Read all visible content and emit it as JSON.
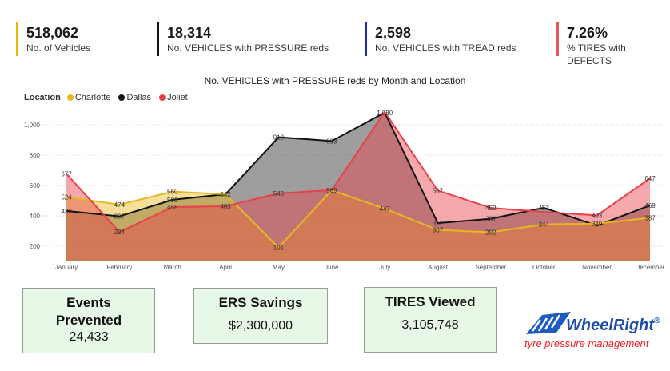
{
  "kpis": [
    {
      "value": "518,062",
      "label": "No. of Vehicles",
      "color": "#e6b800"
    },
    {
      "value": "18,314",
      "label": "No. VEHICLES with PRESSURE reds",
      "color": "#111111"
    },
    {
      "value": "2,598",
      "label": "No. VEHICLES with TREAD reds",
      "color": "#1a2a9c"
    },
    {
      "value": "7.26%",
      "label": "% TIRES with DEFECTS",
      "color": "#e85a5a"
    }
  ],
  "legend": {
    "title": "Location"
  },
  "chart_data": {
    "type": "area",
    "title": "No. VEHICLES with PRESSURE reds by Month and Location",
    "categories": [
      "January",
      "February",
      "March",
      "April",
      "May",
      "June",
      "July",
      "August",
      "September",
      "October",
      "November",
      "December"
    ],
    "ylim": [
      100,
      1100
    ],
    "yticks": [
      "1,000",
      "800",
      "600",
      "400",
      "200"
    ],
    "ytick_values": [
      1000,
      800,
      600,
      400,
      200
    ],
    "series": [
      {
        "name": "Charlotte",
        "color": "#e8b820",
        "values": [
          524,
          474,
          560,
          542,
          191,
          569,
          447,
          307,
          292,
          344,
          349,
          387
        ],
        "labels": [
          "524",
          "474",
          "560",
          "542",
          "191",
          "569",
          "447",
          "307",
          "292",
          "344",
          "349",
          "387"
        ]
      },
      {
        "name": "Dallas",
        "color": "#111111",
        "values": [
          432,
          397,
          506,
          542,
          918,
          893,
          1080,
          352,
          381,
          453,
          336,
          469
        ],
        "labels": [
          "432",
          "397",
          "506",
          "",
          "918",
          "893",
          "1,080",
          "352",
          "381",
          "453",
          "",
          "469"
        ]
      },
      {
        "name": "Joliet",
        "color": "#e8404a",
        "values": [
          677,
          294,
          458,
          463,
          548,
          569,
          1085,
          567,
          452,
          426,
          403,
          647
        ],
        "labels": [
          "677",
          "294",
          "458",
          "463",
          "548",
          "",
          "",
          "567",
          "452",
          "",
          "403",
          "647"
        ]
      }
    ]
  },
  "cards": [
    {
      "title": "Events Prevented",
      "value": "24,433"
    },
    {
      "title": "ERS Savings",
      "value": "$2,300,000"
    },
    {
      "title": "TIRES Viewed",
      "value": "3,105,748"
    }
  ],
  "logo": {
    "name": "WheelRight",
    "tagline": "tyre pressure management",
    "registered": "®"
  }
}
